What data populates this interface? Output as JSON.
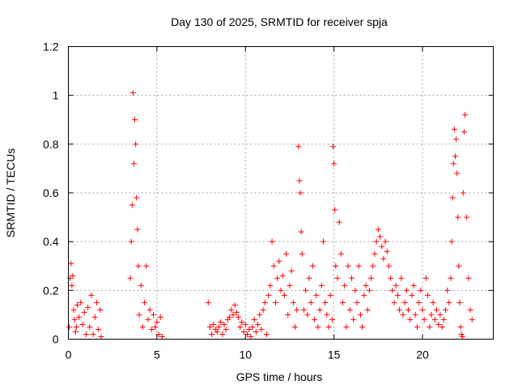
{
  "chart_data": {
    "type": "scatter",
    "title": "Day 130 of 2025, SRMTID for receiver spja",
    "xlabel": "GPS time / hours",
    "ylabel": "SRMTID / TECUs",
    "xlim": [
      0,
      24
    ],
    "ylim": [
      0,
      1.2
    ],
    "xticks": [
      0,
      5,
      10,
      15,
      20
    ],
    "xtick_labels": [
      "0",
      "5",
      "10",
      "15",
      "20"
    ],
    "yticks": [
      0,
      0.2,
      0.4,
      0.6,
      0.8,
      1.0,
      1.2
    ],
    "ytick_labels": [
      "0",
      "0.2",
      "0.4",
      "0.6",
      "0.8",
      "1",
      "1.2"
    ],
    "grid": true,
    "marker": "+",
    "marker_color": "#ff0000",
    "series": [
      {
        "name": "SRMTID",
        "x": [
          0.05,
          0.1,
          0.15,
          0.2,
          0.25,
          0.3,
          0.35,
          0.4,
          0.45,
          0.5,
          0.6,
          0.7,
          0.8,
          0.9,
          1.0,
          1.1,
          1.2,
          1.3,
          1.4,
          1.5,
          1.6,
          1.7,
          1.8,
          1.85,
          3.5,
          3.55,
          3.6,
          3.65,
          3.7,
          3.75,
          3.8,
          3.85,
          3.9,
          3.95,
          4.0,
          4.1,
          4.2,
          4.3,
          4.4,
          4.5,
          4.6,
          4.7,
          4.8,
          4.9,
          5.0,
          5.1,
          5.2,
          5.3,
          7.9,
          8.0,
          8.1,
          8.2,
          8.3,
          8.4,
          8.5,
          8.6,
          8.7,
          8.8,
          8.9,
          9.0,
          9.1,
          9.2,
          9.3,
          9.4,
          9.5,
          9.6,
          9.7,
          9.8,
          9.9,
          10.0,
          10.1,
          10.2,
          10.3,
          10.4,
          10.5,
          10.6,
          10.7,
          10.8,
          10.9,
          11.0,
          11.1,
          11.2,
          11.3,
          11.4,
          11.5,
          11.6,
          11.7,
          11.8,
          11.9,
          12.0,
          12.1,
          12.2,
          12.3,
          12.4,
          12.5,
          12.6,
          12.7,
          12.8,
          12.9,
          13.0,
          13.05,
          13.1,
          13.15,
          13.2,
          13.3,
          13.4,
          13.5,
          13.6,
          13.7,
          13.8,
          13.9,
          14.0,
          14.1,
          14.2,
          14.3,
          14.4,
          14.5,
          14.6,
          14.7,
          14.8,
          14.9,
          14.95,
          15.0,
          15.05,
          15.1,
          15.2,
          15.3,
          15.4,
          15.5,
          15.6,
          15.7,
          15.8,
          15.9,
          16.0,
          16.1,
          16.2,
          16.3,
          16.4,
          16.5,
          16.6,
          16.7,
          16.8,
          16.9,
          17.0,
          17.1,
          17.2,
          17.3,
          17.4,
          17.5,
          17.6,
          17.7,
          17.8,
          17.9,
          18.0,
          18.1,
          18.2,
          18.3,
          18.4,
          18.5,
          18.6,
          18.7,
          18.8,
          18.9,
          19.0,
          19.1,
          19.2,
          19.3,
          19.4,
          19.5,
          19.6,
          19.7,
          19.8,
          19.9,
          20.0,
          20.1,
          20.2,
          20.3,
          20.4,
          20.5,
          20.6,
          20.7,
          20.8,
          20.9,
          21.0,
          21.1,
          21.2,
          21.3,
          21.4,
          21.5,
          21.6,
          21.65,
          21.7,
          21.75,
          21.8,
          21.85,
          21.9,
          21.95,
          22.0,
          22.05,
          22.1,
          22.15,
          22.2,
          22.25,
          22.3,
          22.35,
          22.4,
          22.5,
          22.6,
          22.7,
          22.8
        ],
        "y": [
          0.05,
          0.25,
          0.31,
          0.22,
          0.26,
          0.12,
          0.08,
          0.03,
          0.05,
          0.14,
          0.09,
          0.15,
          0.06,
          0.11,
          0.02,
          0.13,
          0.05,
          0.18,
          0.02,
          0.09,
          0.15,
          0.04,
          0.12,
          0.01,
          0.25,
          0.4,
          0.55,
          1.01,
          0.72,
          0.9,
          0.8,
          0.58,
          0.45,
          0.3,
          0.1,
          0.22,
          0.05,
          0.15,
          0.3,
          0.08,
          0.12,
          0.04,
          0.1,
          0.05,
          0.07,
          0.02,
          0.09,
          0.01,
          0.15,
          0.05,
          0.02,
          0.06,
          0.04,
          0.03,
          0.05,
          0.07,
          0.02,
          0.06,
          0.04,
          0.08,
          0.09,
          0.12,
          0.1,
          0.14,
          0.11,
          0.09,
          0.05,
          0.07,
          0.03,
          0.06,
          0.02,
          0.04,
          0.01,
          0.05,
          0.08,
          0.03,
          0.06,
          0.1,
          0.04,
          0.12,
          0.15,
          0.02,
          0.18,
          0.22,
          0.4,
          0.3,
          0.15,
          0.25,
          0.32,
          0.2,
          0.26,
          0.18,
          0.35,
          0.1,
          0.22,
          0.28,
          0.15,
          0.05,
          0.12,
          0.79,
          0.65,
          0.6,
          0.44,
          0.35,
          0.12,
          0.2,
          0.1,
          0.25,
          0.15,
          0.3,
          0.08,
          0.18,
          0.05,
          0.12,
          0.22,
          0.4,
          0.15,
          0.1,
          0.05,
          0.18,
          0.08,
          0.79,
          0.72,
          0.53,
          0.3,
          0.25,
          0.48,
          0.35,
          0.15,
          0.22,
          0.05,
          0.3,
          0.12,
          0.25,
          0.08,
          0.2,
          0.15,
          0.3,
          0.1,
          0.05,
          0.18,
          0.22,
          0.12,
          0.2,
          0.25,
          0.3,
          0.35,
          0.4,
          0.45,
          0.42,
          0.38,
          0.33,
          0.4,
          0.36,
          0.3,
          0.25,
          0.2,
          0.15,
          0.22,
          0.18,
          0.12,
          0.25,
          0.1,
          0.15,
          0.2,
          0.12,
          0.08,
          0.18,
          0.22,
          0.1,
          0.05,
          0.15,
          0.2,
          0.12,
          0.08,
          0.25,
          0.18,
          0.05,
          0.1,
          0.15,
          0.08,
          0.12,
          0.06,
          0.1,
          0.05,
          0.08,
          0.12,
          0.2,
          0.15,
          0.25,
          0.4,
          0.58,
          0.72,
          0.86,
          0.75,
          0.82,
          0.68,
          0.5,
          0.3,
          0.15,
          0.05,
          0.02,
          0.01,
          0.6,
          0.85,
          0.92,
          0.5,
          0.25,
          0.12,
          0.08
        ]
      }
    ]
  }
}
